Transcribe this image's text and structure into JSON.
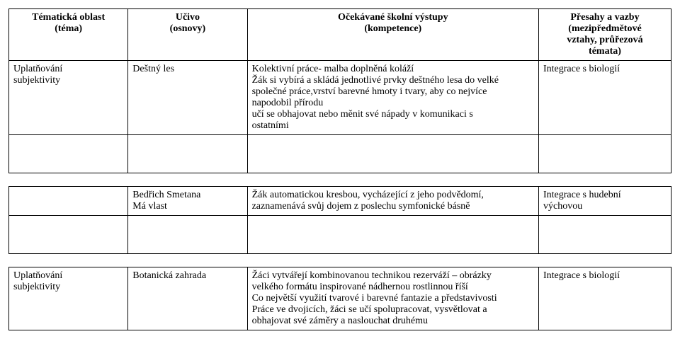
{
  "table1": {
    "headers": {
      "c1_l1": "Tématická oblast",
      "c1_l2": "(téma)",
      "c2_l1": "Učivo",
      "c2_l2": "(osnovy)",
      "c3_l1": "Očekávané školní výstupy",
      "c3_l2": "(kompetence)",
      "c4_l1": "Přesahy a vazby",
      "c4_l2": "(mezipředmětové",
      "c4_l3": "vztahy, průřezová",
      "c4_l4": "témata)"
    },
    "row1": {
      "c1_l1": "Uplatňování",
      "c1_l2": "subjektivity",
      "c2": "Deštný les",
      "c3_l1": "Kolektivní práce- malba doplněná koláží",
      "c3_l2": "Žák si vybírá a skládá jednotlivé prvky deštného lesa do velké",
      "c3_l3": "společné práce,vrství barevné hmoty i tvary, aby co nejvíce",
      "c3_l4": "napodobil přírodu",
      "c3_l5": " učí se obhajovat nebo měnit své nápady v komunikaci s",
      "c3_l6": "ostatními",
      "c4": "Integrace s biologií"
    }
  },
  "table2": {
    "row1": {
      "c1": "",
      "c2_l1": "Bedřich Smetana",
      "c2_l2": "Má vlast",
      "c3_l1": "Žák automatickou kresbou, vycházející z jeho podvědomí,",
      "c3_l2": "zaznamenává svůj dojem z poslechu symfonické básně",
      "c4_l1": "Integrace s hudební",
      "c4_l2": "výchovou"
    }
  },
  "table3": {
    "row1": {
      "c1_l1": "Uplatňování",
      "c1_l2": "subjektivity",
      "c2": "Botanická zahrada",
      "c3_l1": "Žáci vytvářejí kombinovanou technikou rezerváží – obrázky",
      "c3_l2": "velkého formátu inspirované nádhernou rostlinnou říší",
      "c3_l3": "Co největší využití tvarové i barevné fantazie a představivosti",
      "c3_l4": "Práce ve dvojicích, žáci se učí spolupracovat, vysvětlovat a",
      "c3_l5": "obhajovat své záměry a naslouchat druhému",
      "c4": "Integrace s biologií"
    }
  }
}
